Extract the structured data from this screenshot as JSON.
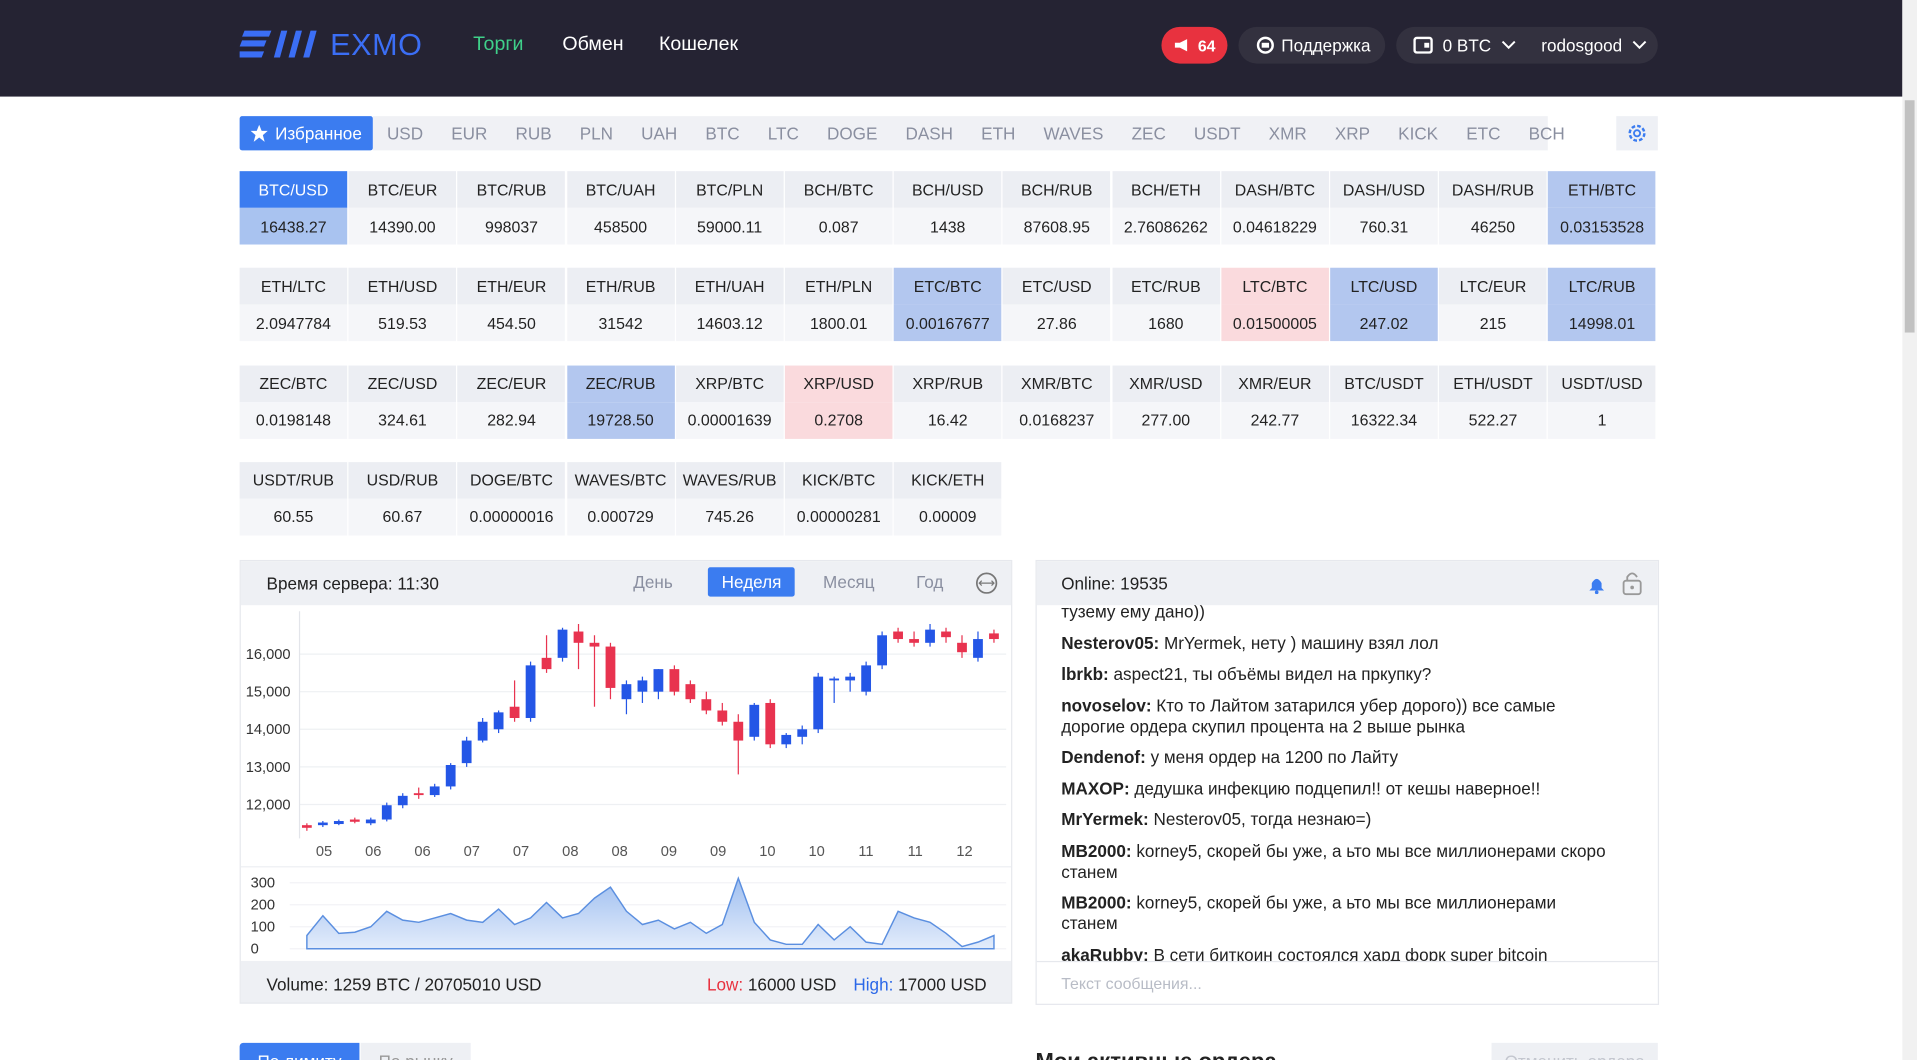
{
  "header": {
    "logo": "EXMO",
    "nav": [
      {
        "label": "Торги",
        "active": true
      },
      {
        "label": "Обмен"
      },
      {
        "label": "Кошелек"
      }
    ],
    "notifications": "64",
    "support": "Поддержка",
    "balance": "0 BTC",
    "user": "rodosgood"
  },
  "currency_tabs": {
    "items": [
      "Избранное",
      "USD",
      "EUR",
      "RUB",
      "PLN",
      "UAH",
      "BTC",
      "LTC",
      "DOGE",
      "DASH",
      "ETH",
      "WAVES",
      "ZEC",
      "USDT",
      "XMR",
      "XRP",
      "KICK",
      "ETC",
      "BCH"
    ],
    "active": 0
  },
  "pairs": {
    "rows": [
      [
        {
          "pair": "BTC/USD",
          "price": "16438.27",
          "state": "active"
        },
        {
          "pair": "BTC/EUR",
          "price": "14390.00"
        },
        {
          "pair": "BTC/RUB",
          "price": "998037"
        },
        {
          "pair": "BTC/UAH",
          "price": "458500"
        },
        {
          "pair": "BTC/PLN",
          "price": "59000.11"
        },
        {
          "pair": "BCH/BTC",
          "price": "0.087"
        },
        {
          "pair": "BCH/USD",
          "price": "1438"
        },
        {
          "pair": "BCH/RUB",
          "price": "87608.95"
        },
        {
          "pair": "BCH/ETH",
          "price": "2.76086262"
        },
        {
          "pair": "DASH/BTC",
          "price": "0.04618229"
        },
        {
          "pair": "DASH/USD",
          "price": "760.31"
        },
        {
          "pair": "DASH/RUB",
          "price": "46250"
        },
        {
          "pair": "ETH/BTC",
          "price": "0.03153528",
          "state": "up"
        }
      ],
      [
        {
          "pair": "ETH/LTC",
          "price": "2.0947784"
        },
        {
          "pair": "ETH/USD",
          "price": "519.53"
        },
        {
          "pair": "ETH/EUR",
          "price": "454.50"
        },
        {
          "pair": "ETH/RUB",
          "price": "31542"
        },
        {
          "pair": "ETH/UAH",
          "price": "14603.12"
        },
        {
          "pair": "ETH/PLN",
          "price": "1800.01"
        },
        {
          "pair": "ETC/BTC",
          "price": "0.00167677",
          "state": "up"
        },
        {
          "pair": "ETC/USD",
          "price": "27.86"
        },
        {
          "pair": "ETC/RUB",
          "price": "1680"
        },
        {
          "pair": "LTC/BTC",
          "price": "0.01500005",
          "state": "down"
        },
        {
          "pair": "LTC/USD",
          "price": "247.02",
          "state": "up"
        },
        {
          "pair": "LTC/EUR",
          "price": "215"
        },
        {
          "pair": "LTC/RUB",
          "price": "14998.01",
          "state": "up"
        }
      ],
      [
        {
          "pair": "ZEC/BTC",
          "price": "0.0198148"
        },
        {
          "pair": "ZEC/USD",
          "price": "324.61"
        },
        {
          "pair": "ZEC/EUR",
          "price": "282.94"
        },
        {
          "pair": "ZEC/RUB",
          "price": "19728.50",
          "state": "up"
        },
        {
          "pair": "XRP/BTC",
          "price": "0.00001639"
        },
        {
          "pair": "XRP/USD",
          "price": "0.2708",
          "state": "down"
        },
        {
          "pair": "XRP/RUB",
          "price": "16.42"
        },
        {
          "pair": "XMR/BTC",
          "price": "0.0168237"
        },
        {
          "pair": "XMR/USD",
          "price": "277.00"
        },
        {
          "pair": "XMR/EUR",
          "price": "242.77"
        },
        {
          "pair": "BTC/USDT",
          "price": "16322.34"
        },
        {
          "pair": "ETH/USDT",
          "price": "522.27"
        },
        {
          "pair": "USDT/USD",
          "price": "1"
        }
      ],
      [
        {
          "pair": "USDT/RUB",
          "price": "60.55"
        },
        {
          "pair": "USD/RUB",
          "price": "60.67"
        },
        {
          "pair": "DOGE/BTC",
          "price": "0.00000016"
        },
        {
          "pair": "WAVES/BTC",
          "price": "0.000729"
        },
        {
          "pair": "WAVES/RUB",
          "price": "745.26"
        },
        {
          "pair": "KICK/BTC",
          "price": "0.00000281"
        },
        {
          "pair": "KICK/ETH",
          "price": "0.00009"
        }
      ]
    ]
  },
  "chart_panel": {
    "server_time": "Время сервера: 11:30",
    "periods": [
      "День",
      "Неделя",
      "Месяц",
      "Год"
    ],
    "active_period": 1,
    "chart": {
      "type": "candlestick",
      "x_labels": [
        "05",
        "06",
        "06",
        "07",
        "07",
        "08",
        "08",
        "09",
        "09",
        "10",
        "10",
        "11",
        "11",
        "12"
      ],
      "candles": {
        "open": [
          11450,
          11450,
          11480,
          11600,
          11500,
          11600,
          11980,
          12300,
          12250,
          12480,
          13100,
          13700,
          14000,
          14600,
          14300,
          15900,
          15900,
          16600,
          16300,
          16200,
          14800,
          15000,
          15000,
          15600,
          15200,
          14800,
          14500,
          14200,
          13800,
          14700,
          13600,
          13800,
          14000,
          15300,
          15300,
          15000,
          15700,
          16600,
          16400,
          16300,
          16600,
          16300,
          15900,
          16550
        ],
        "high": [
          11500,
          11560,
          11600,
          11650,
          11650,
          12050,
          12300,
          12450,
          12550,
          13100,
          13800,
          14300,
          14500,
          15300,
          15800,
          16500,
          16700,
          16800,
          16500,
          16300,
          15300,
          15400,
          15600,
          15700,
          15300,
          15000,
          14700,
          14400,
          14700,
          14800,
          13900,
          14100,
          15500,
          15400,
          15500,
          15800,
          16600,
          16700,
          16600,
          16800,
          16700,
          16500,
          16600,
          16650
        ],
        "low": [
          11300,
          11400,
          11450,
          11500,
          11450,
          11550,
          11900,
          12150,
          12200,
          12400,
          13000,
          13650,
          13900,
          14200,
          14200,
          15500,
          15800,
          15600,
          14600,
          14800,
          14400,
          14700,
          14800,
          14900,
          14700,
          14400,
          14100,
          12800,
          13700,
          13500,
          13500,
          13600,
          13900,
          14700,
          15000,
          14900,
          15600,
          16300,
          16200,
          16200,
          16300,
          15900,
          15800,
          16300
        ],
        "close": [
          11380,
          11520,
          11560,
          11540,
          11600,
          11980,
          12230,
          12250,
          12480,
          13050,
          13700,
          14200,
          14450,
          14300,
          15700,
          15600,
          16650,
          16300,
          16200,
          15100,
          15200,
          15300,
          15600,
          15000,
          14800,
          14500,
          14200,
          13700,
          14650,
          13600,
          13850,
          14000,
          15400,
          15350,
          15400,
          15700,
          16500,
          16400,
          16300,
          16650,
          16450,
          16050,
          16400,
          16400
        ]
      },
      "ylim": [
        11100,
        16800
      ],
      "yticks": [
        {
          "value": 12000,
          "label": "12,000"
        },
        {
          "value": 13000,
          "label": "13,000"
        },
        {
          "value": 14000,
          "label": "14,000"
        },
        {
          "value": 15000,
          "label": "15,000"
        },
        {
          "value": 16000,
          "label": "16,000"
        }
      ],
      "up_color": "#2456e6",
      "down_color": "#e8334f",
      "volume": {
        "values": [
          60,
          150,
          70,
          75,
          100,
          170,
          130,
          120,
          140,
          160,
          130,
          120,
          180,
          110,
          140,
          210,
          140,
          160,
          230,
          280,
          170,
          110,
          130,
          90,
          120,
          70,
          110,
          320,
          120,
          40,
          20,
          20,
          110,
          40,
          100,
          30,
          20,
          170,
          140,
          120,
          70,
          10,
          30,
          60
        ],
        "ylim": [
          0,
          330
        ],
        "yticks": [
          0,
          100,
          200,
          300
        ],
        "color": "#5b8fe0"
      }
    },
    "volume": "Volume: 1259 BTC / 20705010 USD",
    "low_label": "Low:",
    "low": "16000 USD",
    "high_label": "High:",
    "high": "17000 USD"
  },
  "chat": {
    "online": "Online: 19535",
    "messages": [
      {
        "text": "тузему ему дано))"
      },
      {
        "user": "Nesterov05:",
        "text": "MrYermek, нету ) машину взял лол"
      },
      {
        "user": "lbrkb:",
        "text": "aspect21, ты объёмы видел на пркупку?"
      },
      {
        "user": "novoselov:",
        "text": "Кто то Лайтом затарился убер дорого)) все самые дорогие ордера скупил процента на 2 выше рынка"
      },
      {
        "user": "Dendenof:",
        "text": "у меня ордер на 1200 по Лайту"
      },
      {
        "user": "MAXOP:",
        "text": "дедушка инфекцию подцепил!! от кешы наверное!!"
      },
      {
        "user": "MrYermek:",
        "text": "Nesterov05, тогда незнаю=)"
      },
      {
        "user": "MB2000:",
        "text": "korney5, скорей бы уже, а ьто мы все миллионерами скоро станем"
      },
      {
        "user": "MB2000:",
        "text": "korney5, скорей бы уже, а ьто мы все миллионерами станем"
      },
      {
        "user": "akaRubby:",
        "text": "В сети биткоин состоялся хард форк super bitcoin"
      }
    ],
    "placeholder": "Текст сообщения..."
  },
  "orders": {
    "tabs": [
      "По лимиту",
      "По рынку"
    ],
    "title": "Мои активные ордера",
    "cancel": "Отменить ордера"
  }
}
